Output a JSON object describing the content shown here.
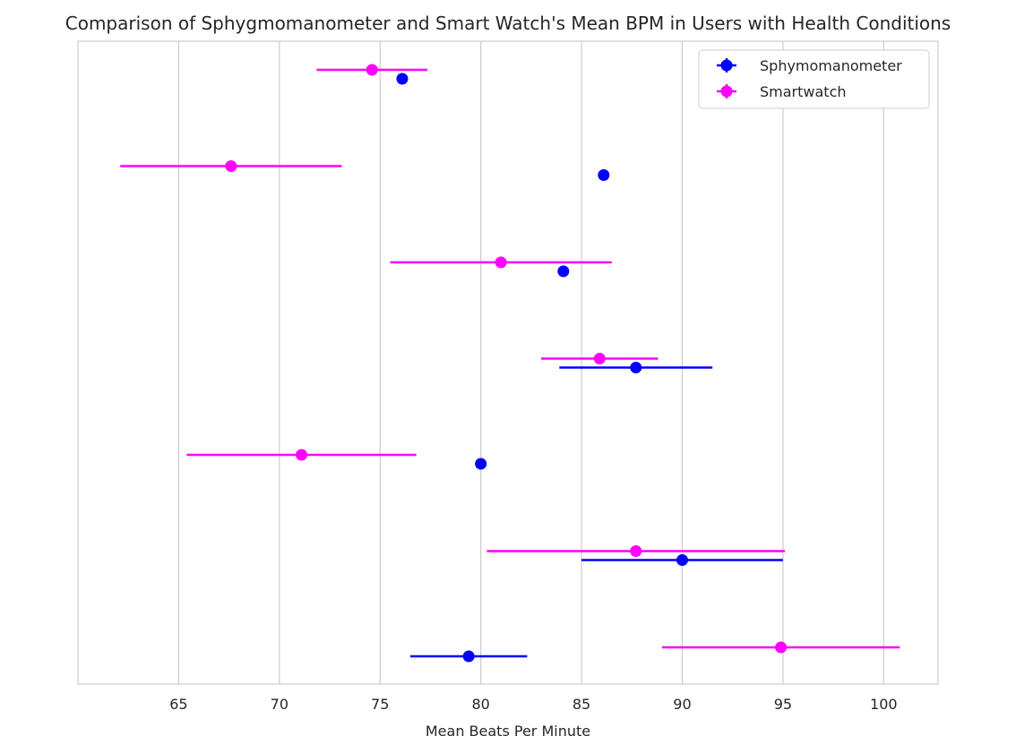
{
  "chart_data": {
    "type": "scatter",
    "subtype": "horizontal-errorbar",
    "title": "Comparison of Sphygmomanometer and Smart Watch's Mean BPM in Users with Health Conditions",
    "xlabel": "Mean Beats Per Minute",
    "ylabel": "",
    "xlim": [
      60,
      102.7
    ],
    "x_ticks": [
      65,
      70,
      75,
      80,
      85,
      90,
      95,
      100
    ],
    "grid": "vertical",
    "legend_position": "top-right",
    "series": [
      {
        "name": "Sphymomanometer",
        "color": "#0000ff",
        "points": [
          {
            "x": 76.1,
            "err_low": 0,
            "err_high": 0
          },
          {
            "x": 86.1,
            "err_low": 0,
            "err_high": 0
          },
          {
            "x": 84.1,
            "err_low": 0,
            "err_high": 0
          },
          {
            "x": 87.7,
            "err_low": 3.8,
            "err_high": 3.8
          },
          {
            "x": 80.0,
            "err_low": 0,
            "err_high": 0
          },
          {
            "x": 90.0,
            "err_low": 5.0,
            "err_high": 5.0
          },
          {
            "x": 79.4,
            "err_low": 2.9,
            "err_high": 2.9
          }
        ]
      },
      {
        "name": "Smartwatch",
        "color": "#ff00ff",
        "points": [
          {
            "x": 74.6,
            "err_low": 2.75,
            "err_high": 2.75
          },
          {
            "x": 67.6,
            "err_low": 5.5,
            "err_high": 5.5
          },
          {
            "x": 81.0,
            "err_low": 5.5,
            "err_high": 5.5
          },
          {
            "x": 85.9,
            "err_low": 2.9,
            "err_high": 2.9
          },
          {
            "x": 71.1,
            "err_low": 5.7,
            "err_high": 5.7
          },
          {
            "x": 87.7,
            "err_low": 7.4,
            "err_high": 7.4
          },
          {
            "x": 94.9,
            "err_low": 5.9,
            "err_high": 5.9
          }
        ]
      }
    ]
  }
}
